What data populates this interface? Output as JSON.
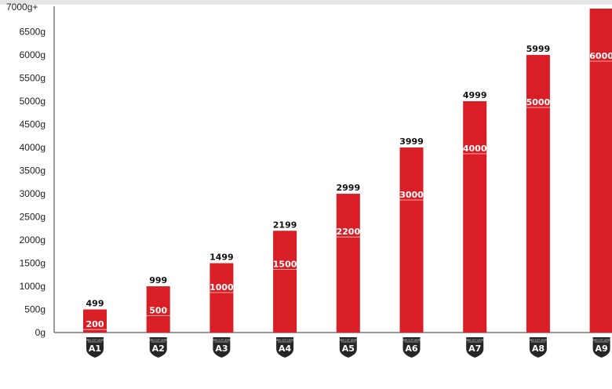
{
  "chart_data": {
    "type": "bar",
    "categories": [
      "A1",
      "A2",
      "A3",
      "A4",
      "A5",
      "A6",
      "A7",
      "A8",
      "A9"
    ],
    "series": [
      {
        "values": [
          499,
          999,
          1499,
          2199,
          2999,
          3999,
          4999,
          5999,
          7000
        ]
      }
    ],
    "top_labels": [
      "499",
      "999",
      "1499",
      "2199",
      "2999",
      "3999",
      "4999",
      "5999",
      ""
    ],
    "range_min_labels": [
      "200",
      "500",
      "1000",
      "1500",
      "2200",
      "3000",
      "4000",
      "5000",
      "6000"
    ],
    "range_min_values": [
      200,
      500,
      1000,
      1500,
      2200,
      3000,
      4000,
      5000,
      6000
    ],
    "y_ticks": [
      "0g",
      "500g",
      "1000g",
      "1500g",
      "2000g",
      "2500g",
      "3000g",
      "3500g",
      "4000g",
      "4500g",
      "5000g",
      "5500g",
      "6000g",
      "6500g",
      "7000g+"
    ],
    "y_tick_values": [
      0,
      500,
      1000,
      1500,
      2000,
      2500,
      3000,
      3500,
      4000,
      4500,
      5000,
      5500,
      6000,
      6500,
      7000
    ],
    "ylim": [
      0,
      7000
    ],
    "badge_caption": "ANSI CUT LEVEL",
    "title": "",
    "xlabel": "",
    "ylabel": "",
    "grid": false,
    "bar_color": "#d91e25",
    "badge_color": "#262626"
  }
}
